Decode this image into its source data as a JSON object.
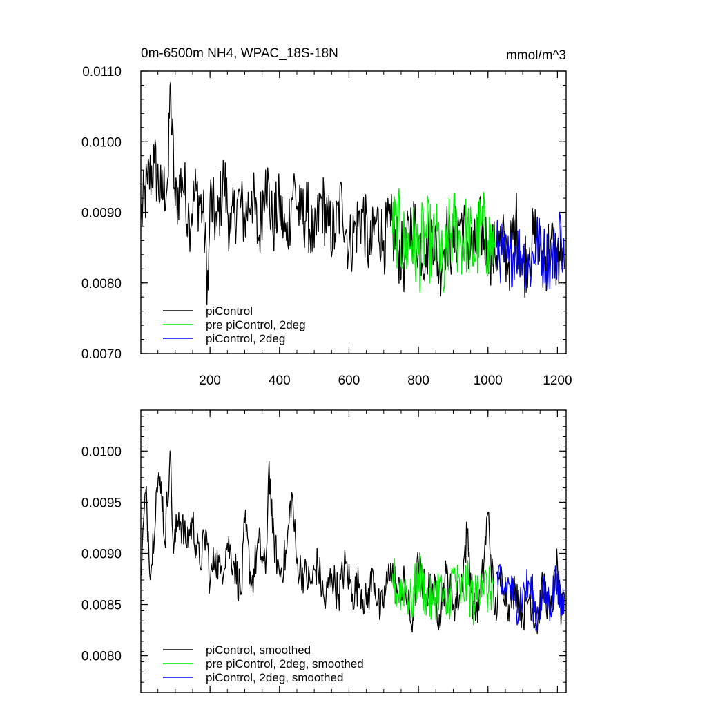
{
  "chart_data": [
    {
      "type": "line",
      "title": "0m-6500m NH4, WPAC_18S-18N",
      "units": "mmol/m^3",
      "xlim": [
        1,
        1225
      ],
      "ylim": [
        0.007,
        0.011
      ],
      "xticks": [
        200,
        400,
        600,
        800,
        1000,
        1200
      ],
      "xtick_labels": [
        "200",
        "400",
        "600",
        "800",
        "1000",
        "1200"
      ],
      "yticks": [
        0.007,
        0.008,
        0.009,
        0.01,
        0.011
      ],
      "ytick_labels": [
        "0.0070",
        "0.0080",
        "0.0090",
        "0.0100",
        "0.0110"
      ],
      "legend_position": "bottom-left",
      "series": [
        {
          "name": "piControl",
          "color": "#000000",
          "x": [
            1,
            20,
            40,
            60,
            80,
            85,
            100,
            120,
            140,
            160,
            180,
            195,
            200,
            220,
            240,
            260,
            280,
            300,
            320,
            340,
            360,
            380,
            400,
            420,
            440,
            460,
            480,
            500,
            520,
            540,
            560,
            580,
            600,
            620,
            640,
            660,
            680,
            700,
            720,
            740,
            760,
            780,
            800,
            820,
            840,
            860,
            880,
            900,
            920,
            940,
            960,
            980,
            1000,
            1020,
            1040,
            1060,
            1080,
            1100,
            1120,
            1140,
            1160,
            1180,
            1200,
            1215
          ],
          "values": [
            0.0089,
            0.0094,
            0.0097,
            0.0092,
            0.0095,
            0.0108,
            0.0091,
            0.0095,
            0.0089,
            0.0093,
            0.009,
            0.0079,
            0.0092,
            0.0088,
            0.0095,
            0.0087,
            0.0092,
            0.0089,
            0.0093,
            0.0086,
            0.0096,
            0.0088,
            0.0091,
            0.0086,
            0.0094,
            0.0089,
            0.009,
            0.0085,
            0.0092,
            0.0088,
            0.0087,
            0.0092,
            0.0085,
            0.0088,
            0.009,
            0.0084,
            0.0089,
            0.0086,
            0.0088,
            0.0085,
            0.0083,
            0.0089,
            0.0086,
            0.0084,
            0.0088,
            0.0082,
            0.0087,
            0.0085,
            0.0089,
            0.0086,
            0.0084,
            0.0088,
            0.0085,
            0.0084,
            0.0086,
            0.0083,
            0.0089,
            0.0082,
            0.0085,
            0.0087,
            0.0082,
            0.0086,
            0.0083,
            0.0085
          ],
          "amplitude": 0.0005
        },
        {
          "name": "pre piControl, 2deg",
          "color": "#00ee00",
          "x": [
            725,
            740,
            760,
            780,
            800,
            820,
            840,
            860,
            873,
            880,
            900,
            920,
            940,
            960,
            980,
            1000,
            1020
          ],
          "values": [
            0.0087,
            0.0088,
            0.0085,
            0.0086,
            0.0084,
            0.0087,
            0.0085,
            0.0086,
            0.0079,
            0.0085,
            0.0088,
            0.0086,
            0.0087,
            0.0084,
            0.0088,
            0.0086,
            0.0085
          ],
          "amplitude": 0.0006
        },
        {
          "name": "piControl, 2deg",
          "color": "#0000ee",
          "x": [
            1025,
            1040,
            1060,
            1080,
            1100,
            1120,
            1140,
            1160,
            1180,
            1200,
            1210,
            1220
          ],
          "values": [
            0.0085,
            0.0084,
            0.0083,
            0.0085,
            0.0084,
            0.0082,
            0.0086,
            0.0084,
            0.0083,
            0.0085,
            0.0088,
            0.0082
          ],
          "amplitude": 0.00045
        }
      ]
    },
    {
      "type": "line",
      "title": "",
      "xlim": [
        1,
        1225
      ],
      "ylim": [
        0.00764,
        0.0104
      ],
      "xticks": [
        200,
        400,
        600,
        800,
        1000,
        1200
      ],
      "yticks": [
        0.008,
        0.0085,
        0.009,
        0.0095,
        0.01
      ],
      "ytick_labels": [
        "0.0080",
        "0.0085",
        "0.0090",
        "0.0095",
        "0.0100"
      ],
      "legend_position": "bottom-left",
      "series": [
        {
          "name": "piControl, smoothed",
          "color": "#000000",
          "x": [
            1,
            15,
            30,
            45,
            60,
            70,
            85,
            95,
            110,
            130,
            150,
            170,
            190,
            200,
            215,
            230,
            250,
            270,
            290,
            300,
            320,
            340,
            360,
            370,
            380,
            400,
            420,
            435,
            450,
            470,
            490,
            510,
            530,
            550,
            570,
            590,
            610,
            630,
            650,
            670,
            690,
            710,
            720,
            740,
            760,
            780,
            800,
            820,
            840,
            860,
            880,
            900,
            920,
            940,
            960,
            980,
            1000,
            1020,
            1040,
            1060,
            1080,
            1100,
            1120,
            1140,
            1160,
            1180,
            1200,
            1210,
            1220
          ],
          "values": [
            0.0088,
            0.0096,
            0.0088,
            0.0096,
            0.0097,
            0.0091,
            0.01,
            0.009,
            0.0094,
            0.0091,
            0.0093,
            0.0089,
            0.0092,
            0.0087,
            0.009,
            0.0088,
            0.0091,
            0.0089,
            0.0086,
            0.0093,
            0.0087,
            0.0091,
            0.0088,
            0.0099,
            0.0092,
            0.0088,
            0.009,
            0.0096,
            0.0089,
            0.0088,
            0.0087,
            0.0089,
            0.0085,
            0.0088,
            0.0086,
            0.0089,
            0.0086,
            0.0087,
            0.0085,
            0.0088,
            0.0084,
            0.0087,
            0.0089,
            0.0086,
            0.0087,
            0.0083,
            0.0089,
            0.0086,
            0.0087,
            0.0084,
            0.0088,
            0.0085,
            0.0086,
            0.0092,
            0.0084,
            0.0086,
            0.0094,
            0.0084,
            0.0088,
            0.0085,
            0.0087,
            0.0084,
            0.0086,
            0.0083,
            0.0087,
            0.0084,
            0.0089,
            0.0083,
            0.0086
          ],
          "amplitude": 0.0002
        },
        {
          "name": "pre piControl, 2deg, smoothed",
          "color": "#00ee00",
          "x": [
            725,
            740,
            760,
            780,
            800,
            820,
            840,
            860,
            880,
            900,
            920,
            940,
            960,
            980,
            1000,
            1015
          ],
          "values": [
            0.0088,
            0.0086,
            0.0087,
            0.0085,
            0.0088,
            0.0086,
            0.0085,
            0.0087,
            0.0084,
            0.0088,
            0.0086,
            0.0087,
            0.0085,
            0.0088,
            0.0086,
            0.0087
          ],
          "amplitude": 0.00025
        },
        {
          "name": "piControl, 2deg, smoothed",
          "color": "#0000ee",
          "x": [
            1025,
            1040,
            1060,
            1080,
            1100,
            1120,
            1140,
            1160,
            1180,
            1200,
            1210,
            1220
          ],
          "values": [
            0.0088,
            0.0086,
            0.0087,
            0.0085,
            0.0086,
            0.0087,
            0.0084,
            0.0086,
            0.0085,
            0.0088,
            0.0084,
            0.0086
          ],
          "amplitude": 0.00022
        }
      ]
    }
  ]
}
